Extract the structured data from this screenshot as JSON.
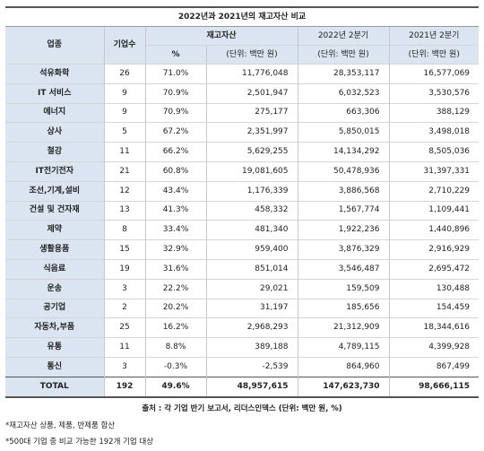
{
  "title": "2022년과 2021년의 재고자산 비교",
  "header": {
    "inventory_group": "재고자산",
    "industry": "업종",
    "companies": "기업수",
    "pct": "%",
    "unit_inventory": "(단위: 백만 원)",
    "q2_2022": "2022년 2분기",
    "q2_2021": "2021년 2분기",
    "unit_2022": "(단위: 백만 원)",
    "unit_2021": "(단위: 백만 원)"
  },
  "rows": [
    {
      "industry": "석유화학",
      "companies": "26",
      "pct": "71.0%",
      "inventory": "11,776,048",
      "q2_2022": "28,353,117",
      "q2_2021": "16,577,069"
    },
    {
      "industry": "IT 서비스",
      "companies": "9",
      "pct": "70.9%",
      "inventory": "2,501,947",
      "q2_2022": "6,032,523",
      "q2_2021": "3,530,576"
    },
    {
      "industry": "에너지",
      "companies": "9",
      "pct": "70.9%",
      "inventory": "275,177",
      "q2_2022": "663,306",
      "q2_2021": "388,129"
    },
    {
      "industry": "상사",
      "companies": "5",
      "pct": "67.2%",
      "inventory": "2,351,997",
      "q2_2022": "5,850,015",
      "q2_2021": "3,498,018"
    },
    {
      "industry": "철강",
      "companies": "11",
      "pct": "66.2%",
      "inventory": "5,629,255",
      "q2_2022": "14,134,292",
      "q2_2021": "8,505,036"
    },
    {
      "industry": "IT전기전자",
      "companies": "21",
      "pct": "60.8%",
      "inventory": "19,081,605",
      "q2_2022": "50,478,936",
      "q2_2021": "31,397,331"
    },
    {
      "industry": "조선,기계,설비",
      "companies": "12",
      "pct": "43.4%",
      "inventory": "1,176,339",
      "q2_2022": "3,886,568",
      "q2_2021": "2,710,229"
    },
    {
      "industry": "건설 및 건자재",
      "companies": "13",
      "pct": "41.3%",
      "inventory": "458,332",
      "q2_2022": "1,567,774",
      "q2_2021": "1,109,441"
    },
    {
      "industry": "제약",
      "companies": "8",
      "pct": "33.4%",
      "inventory": "481,340",
      "q2_2022": "1,922,236",
      "q2_2021": "1,440,896"
    },
    {
      "industry": "생활용품",
      "companies": "15",
      "pct": "32.9%",
      "inventory": "959,400",
      "q2_2022": "3,876,329",
      "q2_2021": "2,916,929"
    },
    {
      "industry": "식음료",
      "companies": "19",
      "pct": "31.6%",
      "inventory": "851,014",
      "q2_2022": "3,546,487",
      "q2_2021": "2,695,472"
    },
    {
      "industry": "운송",
      "companies": "3",
      "pct": "22.2%",
      "inventory": "29,021",
      "q2_2022": "159,509",
      "q2_2021": "130,488"
    },
    {
      "industry": "공기업",
      "companies": "2",
      "pct": "20.2%",
      "inventory": "31,197",
      "q2_2022": "185,656",
      "q2_2021": "154,459"
    },
    {
      "industry": "자동차,부품",
      "companies": "25",
      "pct": "16.2%",
      "inventory": "2,968,293",
      "q2_2022": "21,312,909",
      "q2_2021": "18,344,616"
    },
    {
      "industry": "유통",
      "companies": "11",
      "pct": "8.8%",
      "inventory": "389,188",
      "q2_2022": "4,789,115",
      "q2_2021": "4,399,928"
    },
    {
      "industry": "통신",
      "companies": "3",
      "pct": "-0.3%",
      "inventory": "-2,539",
      "q2_2022": "864,960",
      "q2_2021": "867,499"
    }
  ],
  "total": {
    "industry": "TOTAL",
    "companies": "192",
    "pct": "49.6%",
    "inventory": "48,957,615",
    "q2_2022": "147,623,730",
    "q2_2021": "98,666,115"
  },
  "source": "출처 : 각 기업 반기 보고서, 리더스인덱스 (단위: 백만 원, %)",
  "notes": [
    "*재고자산 상품, 제품, 반제품 합산",
    "*500대 기업 중 비교 가능한 192개 기업 대상"
  ]
}
